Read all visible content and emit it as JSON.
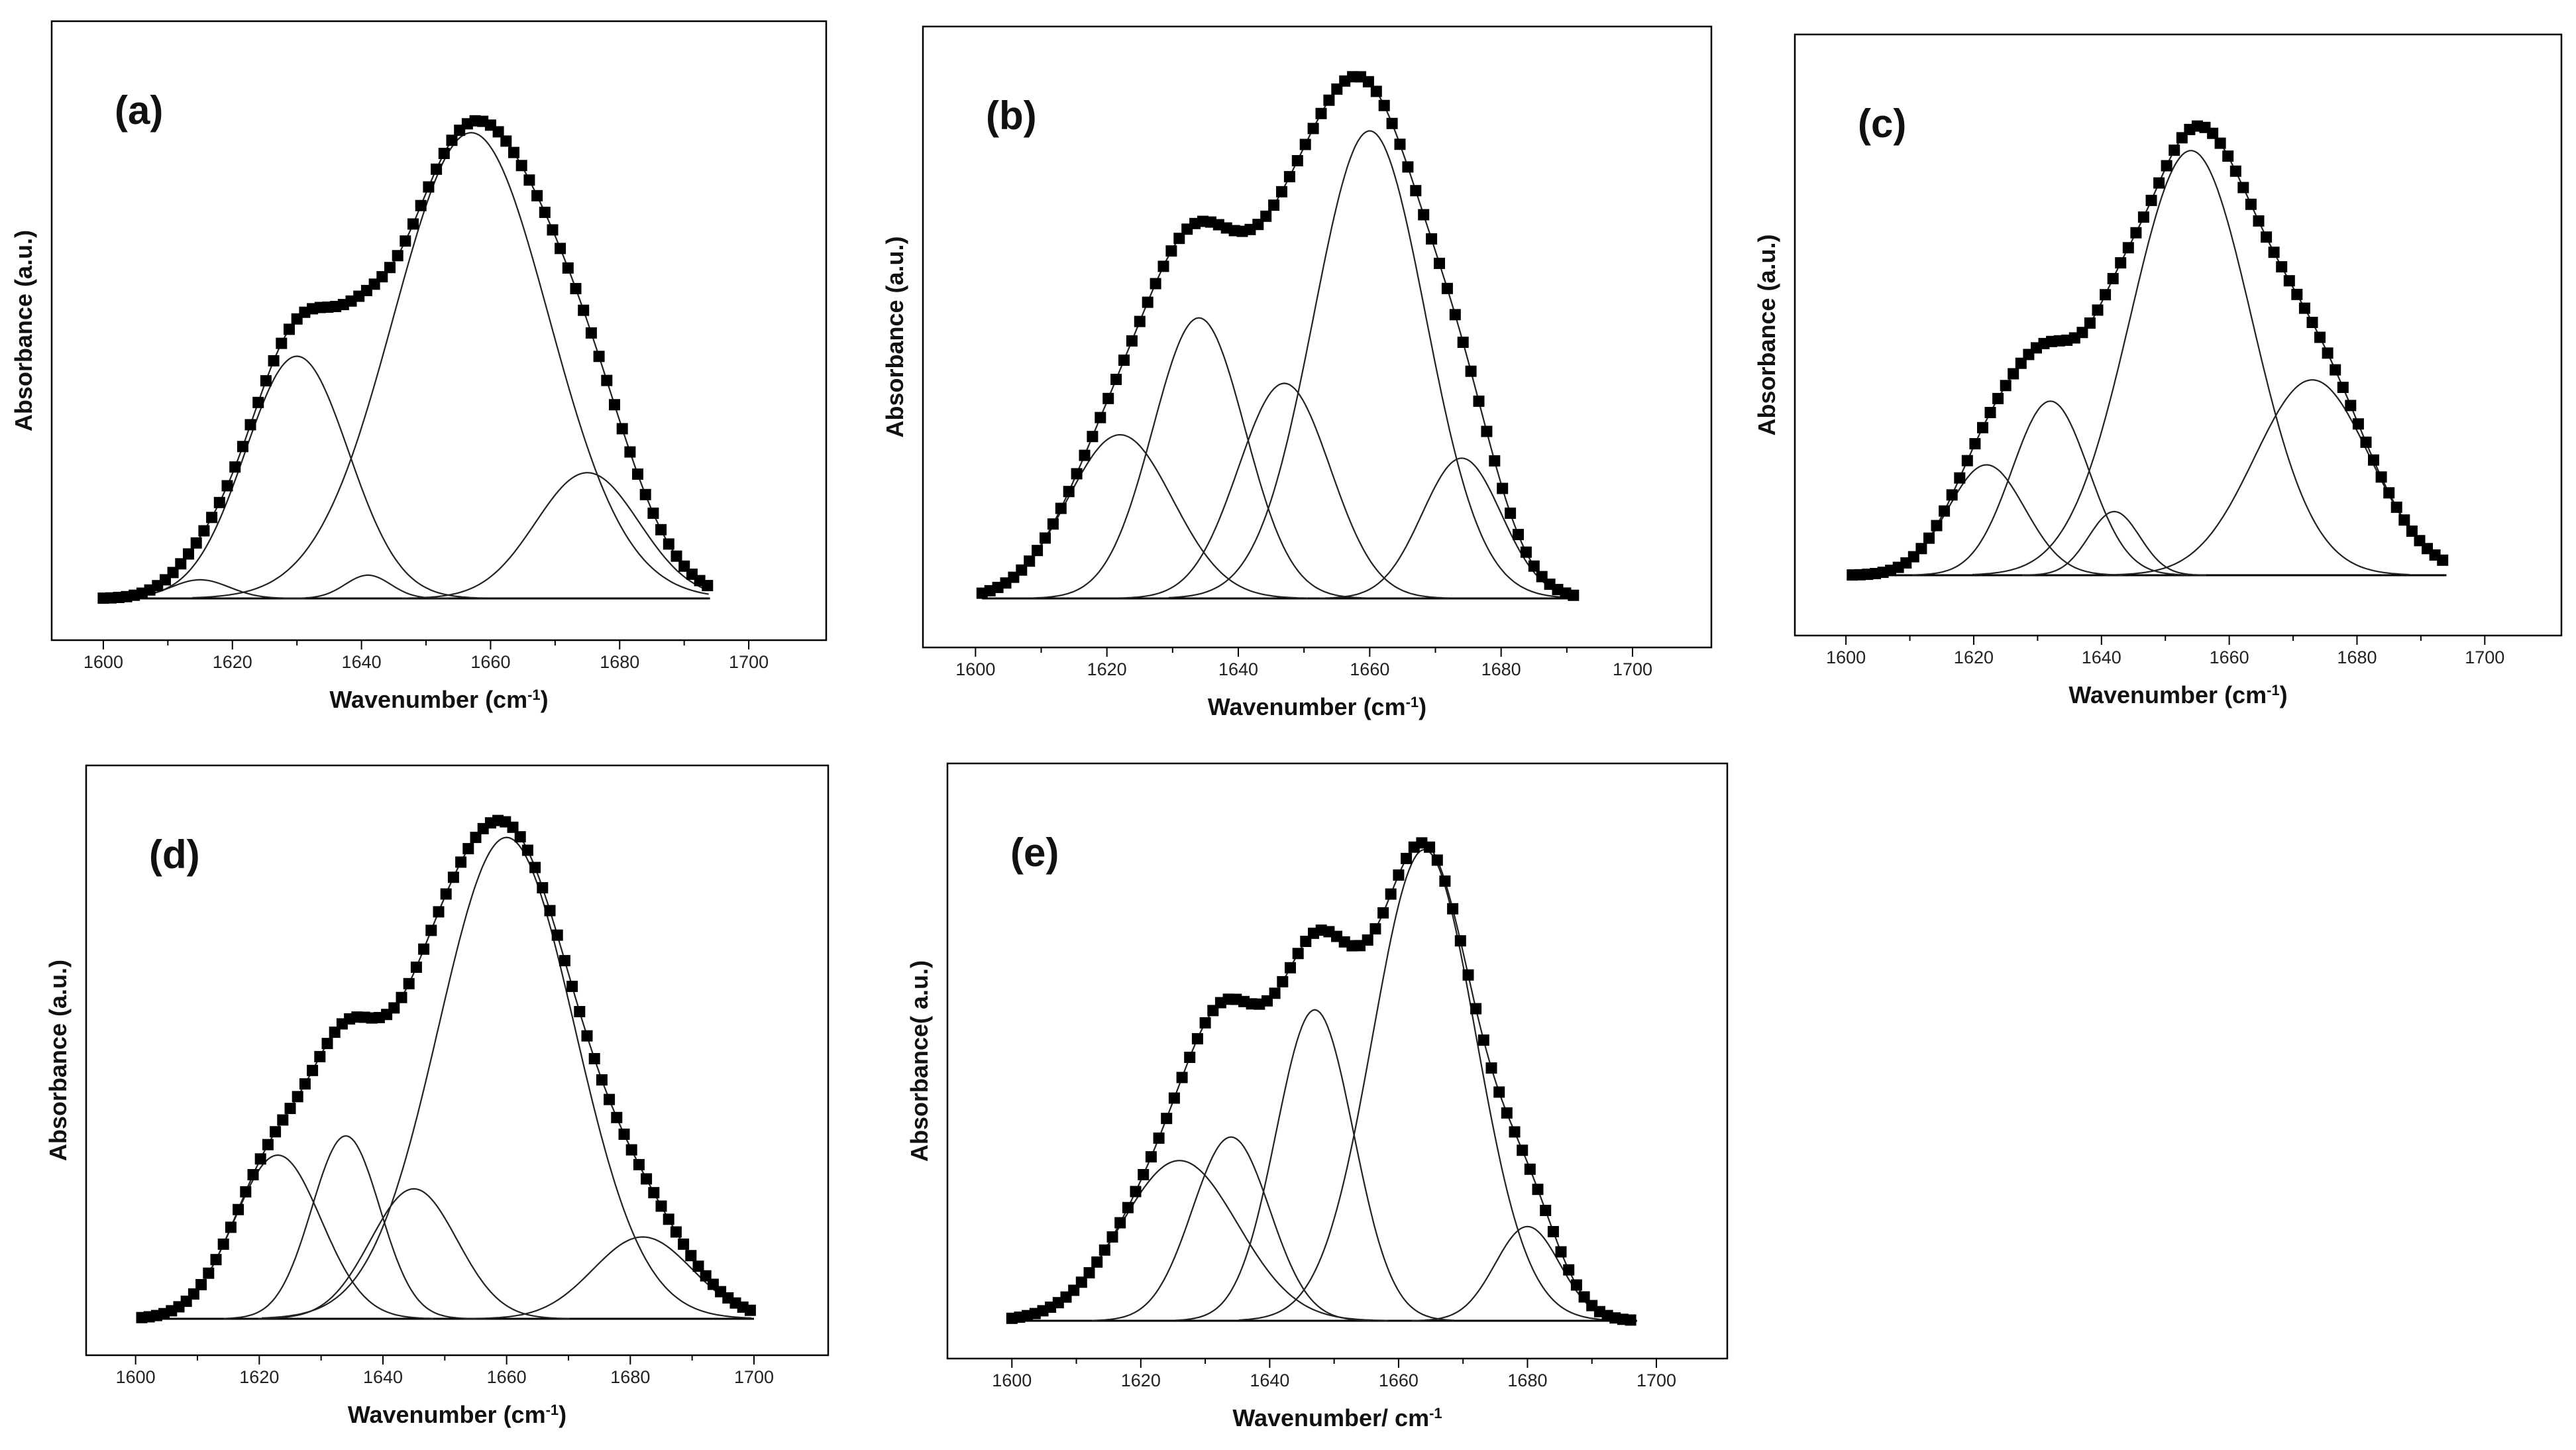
{
  "figure": {
    "colors": {
      "ink": "#000000",
      "fit_line": "#222222",
      "background": "#ffffff"
    },
    "tick_values": [
      1600,
      1620,
      1640,
      1660,
      1680,
      1700
    ],
    "panels": [
      {
        "label": "(a)",
        "ylabel": "Absorbance (a.u.)",
        "xlabel": "Wavenumber (cm",
        "xlabel_sup": "-1",
        "xlabel_tail": ")",
        "xlim": [
          1592,
          1712
        ],
        "data_range": [
          1600,
          1694
        ],
        "bands": [
          [
            1615,
            0.04,
            4.5
          ],
          [
            1630,
            0.52,
            8
          ],
          [
            1641,
            0.05,
            3.5
          ],
          [
            1657,
            1.0,
            12
          ],
          [
            1675,
            0.27,
            8
          ]
        ]
      },
      {
        "label": "(b)",
        "ylabel": "Absorbance (a.u.)",
        "xlabel": "Wavenumber (cm",
        "xlabel_sup": "-1",
        "xlabel_tail": ")",
        "xlim": [
          1592,
          1712
        ],
        "data_range": [
          1601,
          1691
        ],
        "bands": [
          [
            1622,
            0.35,
            8
          ],
          [
            1634,
            0.6,
            7
          ],
          [
            1647,
            0.46,
            7
          ],
          [
            1660,
            1.0,
            8.5
          ],
          [
            1674,
            0.3,
            6
          ]
        ]
      },
      {
        "label": "(c)",
        "ylabel": "Absorbance (a.u.)",
        "xlabel": "Wavenumber (cm",
        "xlabel_sup": "-1",
        "xlabel_tail": ")",
        "xlim": [
          1592,
          1712
        ],
        "data_range": [
          1601,
          1694
        ],
        "bands": [
          [
            1622,
            0.26,
            6
          ],
          [
            1632,
            0.41,
            6
          ],
          [
            1642,
            0.15,
            4
          ],
          [
            1654,
            1.0,
            9.5
          ],
          [
            1673,
            0.46,
            9
          ]
        ]
      },
      {
        "label": "(d)",
        "ylabel": "Absorbance (a.u.)",
        "xlabel": "Wavenumber (cm",
        "xlabel_sup": "-1",
        "xlabel_tail": ")",
        "xlim": [
          1592,
          1712
        ],
        "data_range": [
          1601,
          1700
        ],
        "bands": [
          [
            1623,
            0.34,
            7
          ],
          [
            1634,
            0.38,
            5.5
          ],
          [
            1645,
            0.27,
            7
          ],
          [
            1660,
            1.0,
            11
          ],
          [
            1682,
            0.17,
            8
          ]
        ]
      },
      {
        "label": "(e)",
        "ylabel": "Absorbance( a.u.)",
        "xlabel": "Wavenumber/ cm",
        "xlabel_sup": "-1",
        "xlabel_tail": "",
        "xlim": [
          1590,
          1711
        ],
        "data_range": [
          1600,
          1697
        ],
        "bands": [
          [
            1626,
            0.34,
            9
          ],
          [
            1634,
            0.39,
            6
          ],
          [
            1647,
            0.66,
            6
          ],
          [
            1664,
            1.0,
            8
          ],
          [
            1680,
            0.2,
            5
          ]
        ]
      }
    ]
  },
  "chart_data": [
    {
      "type": "line",
      "title": "(a)",
      "xlabel": "Wavenumber (cm-1)",
      "ylabel": "Absorbance (a.u.)",
      "xlim": [
        1592,
        1712
      ],
      "x_ticks": [
        1600,
        1620,
        1640,
        1660,
        1680,
        1700
      ],
      "y_ticks": [],
      "series": [
        {
          "name": "measured spectrum",
          "style": "squares",
          "x_start": 1600,
          "x_end": 1694
        },
        {
          "name": "band 1",
          "center": 1615,
          "relative_height": 0.04
        },
        {
          "name": "band 2",
          "center": 1630,
          "relative_height": 0.52
        },
        {
          "name": "band 3",
          "center": 1641,
          "relative_height": 0.05
        },
        {
          "name": "band 4",
          "center": 1657,
          "relative_height": 1.0
        },
        {
          "name": "band 5",
          "center": 1675,
          "relative_height": 0.27
        }
      ]
    },
    {
      "type": "line",
      "title": "(b)",
      "xlabel": "Wavenumber (cm-1)",
      "ylabel": "Absorbance (a.u.)",
      "xlim": [
        1592,
        1712
      ],
      "x_ticks": [
        1600,
        1620,
        1640,
        1660,
        1680,
        1700
      ],
      "y_ticks": [],
      "series": [
        {
          "name": "measured spectrum",
          "style": "squares",
          "x_start": 1601,
          "x_end": 1691
        },
        {
          "name": "band 1",
          "center": 1622,
          "relative_height": 0.35
        },
        {
          "name": "band 2",
          "center": 1634,
          "relative_height": 0.6
        },
        {
          "name": "band 3",
          "center": 1647,
          "relative_height": 0.46
        },
        {
          "name": "band 4",
          "center": 1660,
          "relative_height": 1.0
        },
        {
          "name": "band 5",
          "center": 1674,
          "relative_height": 0.3
        }
      ]
    },
    {
      "type": "line",
      "title": "(c)",
      "xlabel": "Wavenumber (cm-1)",
      "ylabel": "Absorbance (a.u.)",
      "xlim": [
        1592,
        1712
      ],
      "x_ticks": [
        1600,
        1620,
        1640,
        1660,
        1680,
        1700
      ],
      "y_ticks": [],
      "series": [
        {
          "name": "measured spectrum",
          "style": "squares",
          "x_start": 1601,
          "x_end": 1694
        },
        {
          "name": "band 1",
          "center": 1622,
          "relative_height": 0.26
        },
        {
          "name": "band 2",
          "center": 1632,
          "relative_height": 0.41
        },
        {
          "name": "band 3",
          "center": 1642,
          "relative_height": 0.15
        },
        {
          "name": "band 4",
          "center": 1654,
          "relative_height": 1.0
        },
        {
          "name": "band 5",
          "center": 1673,
          "relative_height": 0.46
        }
      ]
    },
    {
      "type": "line",
      "title": "(d)",
      "xlabel": "Wavenumber (cm-1)",
      "ylabel": "Absorbance (a.u.)",
      "xlim": [
        1592,
        1712
      ],
      "x_ticks": [
        1600,
        1620,
        1640,
        1660,
        1680,
        1700
      ],
      "y_ticks": [],
      "series": [
        {
          "name": "measured spectrum",
          "style": "squares",
          "x_start": 1601,
          "x_end": 1700
        },
        {
          "name": "band 1",
          "center": 1623,
          "relative_height": 0.34
        },
        {
          "name": "band 2",
          "center": 1634,
          "relative_height": 0.38
        },
        {
          "name": "band 3",
          "center": 1645,
          "relative_height": 0.27
        },
        {
          "name": "band 4",
          "center": 1660,
          "relative_height": 1.0
        },
        {
          "name": "band 5",
          "center": 1682,
          "relative_height": 0.17
        }
      ]
    },
    {
      "type": "line",
      "title": "(e)",
      "xlabel": "Wavenumber/ cm-1",
      "ylabel": "Absorbance( a.u.)",
      "xlim": [
        1590,
        1711
      ],
      "x_ticks": [
        1600,
        1620,
        1640,
        1660,
        1680,
        1700
      ],
      "y_ticks": [],
      "series": [
        {
          "name": "measured spectrum",
          "style": "squares",
          "x_start": 1600,
          "x_end": 1697
        },
        {
          "name": "band 1",
          "center": 1626,
          "relative_height": 0.34
        },
        {
          "name": "band 2",
          "center": 1634,
          "relative_height": 0.39
        },
        {
          "name": "band 3",
          "center": 1647,
          "relative_height": 0.66
        },
        {
          "name": "band 4",
          "center": 1664,
          "relative_height": 1.0
        },
        {
          "name": "band 5",
          "center": 1680,
          "relative_height": 0.2
        }
      ]
    }
  ]
}
